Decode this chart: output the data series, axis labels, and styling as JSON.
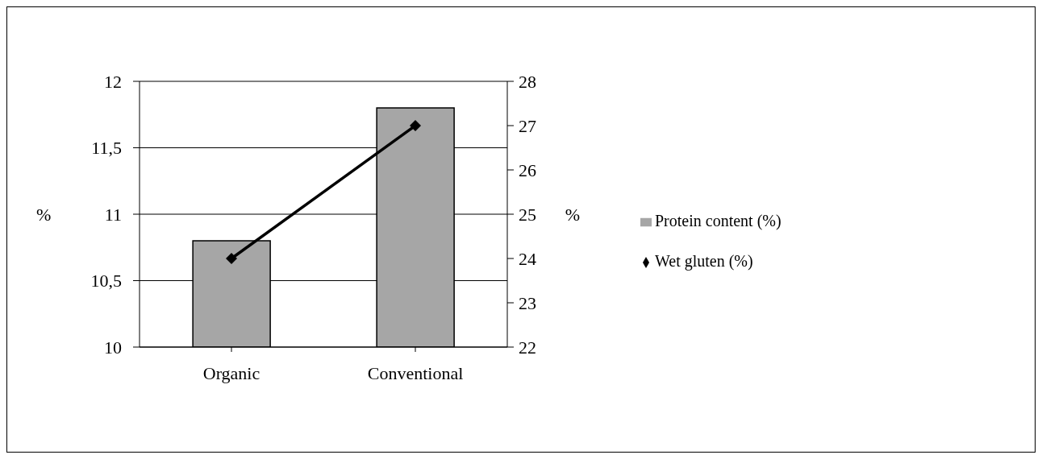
{
  "chart_data": {
    "type": "bar",
    "categories": [
      "Organic",
      "Conventional"
    ],
    "series": [
      {
        "name": "Protein content (%)",
        "color": "#a6a6a6",
        "values": [
          10.8,
          11.8
        ]
      },
      {
        "name": "Wet gluten (%)",
        "type": "line",
        "axis": "y2",
        "color": "#000000",
        "values": [
          24,
          27
        ]
      }
    ],
    "ylabel": "%",
    "y2label": "%",
    "ylim": [
      10,
      12
    ],
    "yticks": [
      10,
      {
        "value": 10.5,
        "label": "10,5"
      },
      11,
      {
        "value": 11.5,
        "label": "11,5"
      },
      12
    ],
    "y2lim": [
      22,
      28
    ],
    "y2ticks": [
      22,
      23,
      24,
      25,
      26,
      27,
      28
    ],
    "grid": "y",
    "legend": "right",
    "marker": "diamond",
    "line_style": "solid"
  }
}
